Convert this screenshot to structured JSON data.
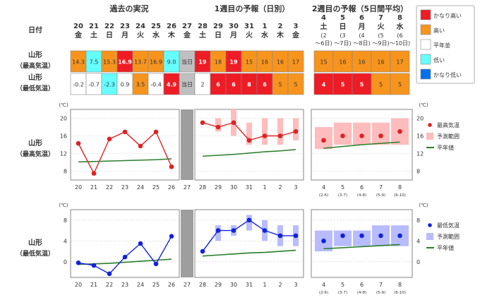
{
  "header": {
    "section_past": "過去の実況",
    "section_week1": "1週目の予報（日別）",
    "section_week2": "2週目の予報（5日間平均）",
    "date_label": "日付"
  },
  "days": [
    {
      "d": "20",
      "w": "金"
    },
    {
      "d": "21",
      "w": "土"
    },
    {
      "d": "22",
      "w": "日"
    },
    {
      "d": "23",
      "w": "月"
    },
    {
      "d": "24",
      "w": "火"
    },
    {
      "d": "25",
      "w": "水"
    },
    {
      "d": "26",
      "w": "木"
    },
    {
      "d": "27",
      "w": "金"
    },
    {
      "d": "28",
      "w": "土"
    },
    {
      "d": "29",
      "w": "日"
    },
    {
      "d": "30",
      "w": "月"
    },
    {
      "d": "31",
      "w": "火"
    },
    {
      "d": "1",
      "w": "水"
    },
    {
      "d": "2",
      "w": "木"
    },
    {
      "d": "3",
      "w": "金"
    }
  ],
  "week2_days": [
    {
      "d": "4",
      "w": "土",
      "r": "(2～6日)"
    },
    {
      "d": "5",
      "w": "日",
      "r": "(3～7日)"
    },
    {
      "d": "6",
      "w": "月",
      "r": "(4～8日)"
    },
    {
      "d": "7",
      "w": "火",
      "r": "(5～9日)"
    },
    {
      "d": "8",
      "w": "水",
      "r": "(6～10日)"
    }
  ],
  "rows": {
    "max_label": [
      "山形",
      "（最高気温）"
    ],
    "min_label": [
      "山形",
      "（最低気温）"
    ],
    "max_cells": [
      "14.3",
      "7.5",
      "15.3",
      "16.9",
      "13.7",
      "16.9",
      "9.0",
      "当日",
      "19",
      "18",
      "19",
      "15",
      "16",
      "16",
      "17"
    ],
    "max_classes": [
      "high",
      "low",
      "high",
      "veryhigh",
      "high",
      "high",
      "low",
      "today",
      "veryhigh",
      "high",
      "veryhigh",
      "high",
      "high",
      "high",
      "high"
    ],
    "min_cells": [
      "-0.2",
      "-0.7",
      "-2.3",
      "0.9",
      "3.5",
      "-0.4",
      "4.9",
      "当日",
      "2",
      "6",
      "6",
      "8",
      "6",
      "5",
      "5"
    ],
    "min_classes": [
      "normal",
      "normal",
      "low",
      "normal",
      "high",
      "normal",
      "veryhigh",
      "today",
      "normal",
      "veryhigh",
      "veryhigh",
      "veryhigh",
      "veryhigh",
      "high",
      "high"
    ],
    "max_week2": [
      "15",
      "16",
      "16",
      "16",
      "17"
    ],
    "max_week2_classes": [
      "high",
      "high",
      "high",
      "high",
      "high"
    ],
    "min_week2": [
      "4",
      "5",
      "5",
      "5",
      "5"
    ],
    "min_week2_classes": [
      "veryhigh",
      "veryhigh",
      "veryhigh",
      "high",
      "high"
    ]
  },
  "legend": [
    {
      "label": "かなり高い",
      "color": "#ee1c25"
    },
    {
      "label": "高い",
      "color": "#f7941d"
    },
    {
      "label": "平年並",
      "color": "#ffffff"
    },
    {
      "label": "低い",
      "color": "#66ffff"
    },
    {
      "label": "かなり低い",
      "color": "#0070f0"
    }
  ],
  "colors": {
    "veryhigh": "#ee1c25",
    "high": "#f7941d",
    "normal": "#ffffff",
    "low": "#66ffff",
    "verylow": "#0070f0",
    "today": "#c0c0c0",
    "max_line": "#dd2222",
    "max_band": "#ffbcbc",
    "min_line": "#1122dd",
    "min_band": "#b8bcff",
    "normal_line": "#2a7d2a"
  },
  "chart_data": [
    {
      "type": "line",
      "title": "山形（最高気温）",
      "unit": "℃",
      "ylim": [
        6,
        22
      ],
      "yticks": [
        8,
        12,
        16,
        20
      ],
      "categories": [
        "20",
        "21",
        "22",
        "23",
        "24",
        "25",
        "26",
        "27",
        "28",
        "29",
        "30",
        "31",
        "1",
        "2",
        "3"
      ],
      "observed": [
        14.3,
        7.5,
        15.3,
        16.9,
        13.7,
        16.9,
        9.0,
        null,
        null,
        null,
        null,
        null,
        null,
        null,
        null
      ],
      "forecast": [
        null,
        null,
        null,
        null,
        null,
        null,
        null,
        null,
        19,
        18,
        19,
        15,
        16,
        16,
        17
      ],
      "forecast_range": [
        null,
        null,
        null,
        null,
        null,
        null,
        null,
        null,
        [
          19,
          19
        ],
        [
          17,
          20
        ],
        [
          16,
          22
        ],
        [
          14,
          19
        ],
        [
          14,
          20
        ],
        [
          14,
          20
        ],
        [
          15,
          20
        ]
      ],
      "normal": [
        10.1,
        10.2,
        10.3,
        10.4,
        10.5,
        10.6,
        10.8,
        null,
        11.4,
        11.6,
        11.8,
        12.1,
        12.4,
        12.6,
        12.9
      ],
      "week2_categories": [
        "4",
        "5",
        "6",
        "7",
        "8"
      ],
      "week2_sublabels": [
        "(2-6)",
        "(3-7)",
        "(4-8)",
        "(5-9)",
        "(6-10)"
      ],
      "week2_forecast": [
        15,
        16,
        16,
        16,
        17
      ],
      "week2_range": [
        [
          13,
          18
        ],
        [
          14,
          19
        ],
        [
          14,
          19
        ],
        [
          14,
          19
        ],
        [
          14,
          20
        ]
      ],
      "week2_normal": [
        13.2,
        13.6,
        14.0,
        14.3,
        14.6
      ],
      "legend": [
        "最高気温",
        "予測範囲",
        "平年値"
      ]
    },
    {
      "type": "line",
      "title": "山形（最低気温）",
      "unit": "℃",
      "ylim": [
        -3,
        10
      ],
      "yticks": [
        0,
        4,
        8
      ],
      "categories": [
        "20",
        "21",
        "22",
        "23",
        "24",
        "25",
        "26",
        "27",
        "28",
        "29",
        "30",
        "31",
        "1",
        "2",
        "3"
      ],
      "observed": [
        -0.2,
        -0.7,
        -2.3,
        0.9,
        3.5,
        -0.4,
        4.9,
        null,
        null,
        null,
        null,
        null,
        null,
        null,
        null
      ],
      "forecast": [
        null,
        null,
        null,
        null,
        null,
        null,
        null,
        null,
        2,
        6,
        6,
        8,
        6,
        5,
        5
      ],
      "forecast_range": [
        null,
        null,
        null,
        null,
        null,
        null,
        null,
        null,
        [
          2,
          2
        ],
        [
          4,
          7
        ],
        [
          5,
          7
        ],
        [
          6,
          9
        ],
        [
          4,
          8
        ],
        [
          3,
          7
        ],
        [
          3,
          7
        ]
      ],
      "normal": [
        -0.5,
        -0.4,
        -0.3,
        -0.1,
        0.1,
        0.3,
        0.5,
        null,
        1.1,
        1.3,
        1.5,
        1.7,
        1.8,
        2.0,
        2.2
      ],
      "week2_categories": [
        "4",
        "5",
        "6",
        "7",
        "8"
      ],
      "week2_sublabels": [
        "(2-6)",
        "(3-7)",
        "(4-8)",
        "(5-9)",
        "(6-10)"
      ],
      "week2_forecast": [
        4,
        5,
        5,
        5,
        5
      ],
      "week2_range": [
        [
          2,
          6
        ],
        [
          3,
          6
        ],
        [
          3,
          6
        ],
        [
          3,
          7
        ],
        [
          3,
          7
        ]
      ],
      "week2_normal": [
        2.5,
        2.7,
        2.9,
        3.1,
        3.3
      ],
      "legend": [
        "最低気温",
        "予測範囲",
        "平年値"
      ]
    }
  ]
}
